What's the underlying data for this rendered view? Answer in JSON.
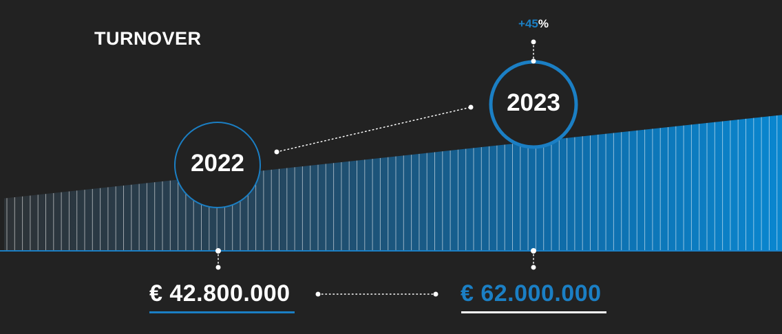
{
  "title": "TURNOVER",
  "change": {
    "sign_value": "+45",
    "unit": "%"
  },
  "chart_data": {
    "type": "area",
    "title": "TURNOVER",
    "x": [
      2022,
      2023
    ],
    "series": [
      {
        "values": [
          42800000,
          62000000
        ]
      }
    ],
    "year_labels": [
      "2022",
      "2023"
    ],
    "value_labels": [
      "€ 42.800.000",
      "€ 62.000.000"
    ],
    "change_label": "+45%"
  },
  "colors": {
    "background": "#222222",
    "accent": "#1b7fc4",
    "fill_light": "#2a3b48",
    "fill_dark": "#0b84cc",
    "text": "#ffffff"
  }
}
